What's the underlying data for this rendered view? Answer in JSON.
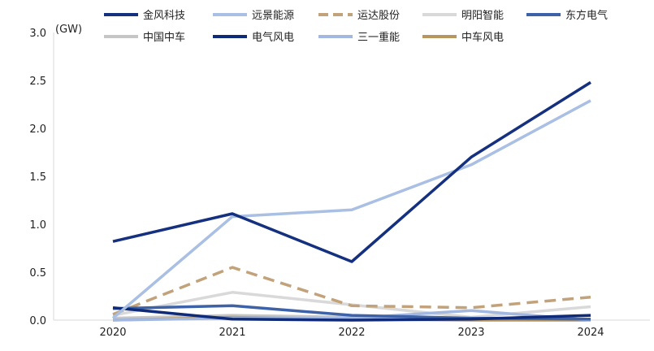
{
  "chart_data": {
    "type": "line",
    "unit_label": "(GW)",
    "x": [
      "2020",
      "2021",
      "2022",
      "2023",
      "2024"
    ],
    "ylim": [
      0,
      3.0
    ],
    "yticks": [
      "0.0",
      "0.5",
      "1.0",
      "1.5",
      "2.0",
      "2.5",
      "3.0"
    ],
    "series": [
      {
        "name": "金风科技",
        "color": "#14307f",
        "dashed": false,
        "values": [
          0.82,
          1.11,
          0.61,
          1.7,
          2.48
        ]
      },
      {
        "name": "远景能源",
        "color": "#a9bfe3",
        "dashed": false,
        "values": [
          0.02,
          1.08,
          1.15,
          1.62,
          2.29
        ]
      },
      {
        "name": "运达股份",
        "color": "#c2a27a",
        "dashed": true,
        "values": [
          0.06,
          0.55,
          0.15,
          0.13,
          0.24
        ]
      },
      {
        "name": "明阳智能",
        "color": "#d9d9d9",
        "dashed": false,
        "values": [
          0.05,
          0.29,
          0.16,
          0.03,
          0.14
        ]
      },
      {
        "name": "东方电气",
        "color": "#3d62a8",
        "dashed": false,
        "values": [
          0.12,
          0.15,
          0.05,
          0.02,
          0.01
        ]
      },
      {
        "name": "中国中车",
        "color": "#c6c6c6",
        "dashed": false,
        "values": [
          0.02,
          0.05,
          0.03,
          0.01,
          0.01
        ]
      },
      {
        "name": "电气风电",
        "color": "#0f2a78",
        "dashed": false,
        "values": [
          0.13,
          0.01,
          0.0,
          0.01,
          0.05
        ]
      },
      {
        "name": "三一重能",
        "color": "#a3b8e0",
        "dashed": false,
        "values": [
          0.0,
          0.02,
          0.02,
          0.1,
          0.0
        ]
      },
      {
        "name": "中车风电",
        "color": "#b8965f",
        "dashed": false,
        "values": [
          0.0,
          0.03,
          0.01,
          0.0,
          0.0
        ]
      }
    ]
  }
}
